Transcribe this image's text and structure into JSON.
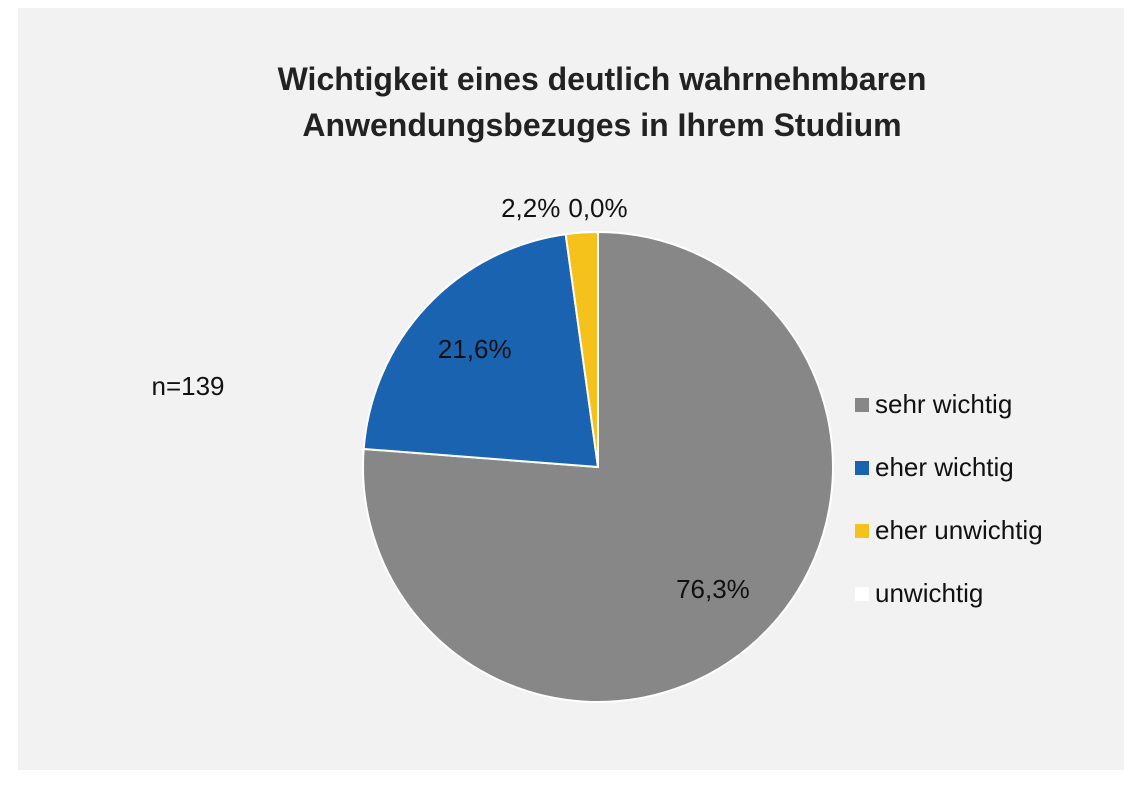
{
  "chart_data": {
    "type": "pie",
    "title": "Wichtigkeit eines deutlich wahrnehmbaren Anwendungsbezuges in Ihrem Studium",
    "annotation": "n=139",
    "categories": [
      "sehr wichtig",
      "eher wichtig",
      "eher unwichtig",
      "unwichtig"
    ],
    "values": [
      76.3,
      21.6,
      2.2,
      0.0
    ],
    "value_labels": [
      "76,3%",
      "21,6%",
      "2,2%",
      "0,0%"
    ],
    "colors": [
      "#878787",
      "#1a63b0",
      "#f5c21b",
      "#ffffff"
    ],
    "legend": "right"
  }
}
